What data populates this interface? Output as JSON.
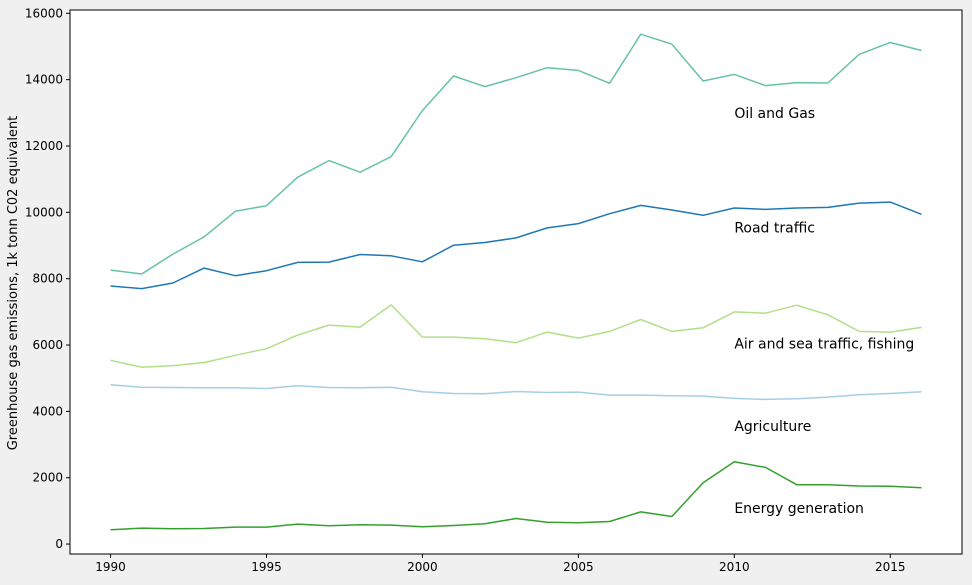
{
  "chart_data": {
    "type": "line",
    "title": "",
    "xlabel": "",
    "ylabel": "Greenhouse gas emissions, 1k tonn C02 equivalent",
    "xlim": [
      1988.7,
      2017.3
    ],
    "ylim": [
      -300,
      16100
    ],
    "xticks": [
      1990,
      1995,
      2000,
      2005,
      2010,
      2015
    ],
    "yticks": [
      0,
      2000,
      4000,
      6000,
      8000,
      10000,
      12000,
      14000,
      16000
    ],
    "grid": false,
    "x": [
      1990,
      1991,
      1992,
      1993,
      1994,
      1995,
      1996,
      1997,
      1998,
      1999,
      2000,
      2001,
      2002,
      2003,
      2004,
      2005,
      2006,
      2007,
      2008,
      2009,
      2010,
      2011,
      2012,
      2013,
      2014,
      2015,
      2016
    ],
    "series": [
      {
        "name": "Oil and Gas",
        "color": "#66c2a5",
        "label_at": [
          2010,
          13000
        ],
        "values": [
          8260,
          8140,
          8740,
          9260,
          10030,
          10200,
          11060,
          11560,
          11210,
          11680,
          13070,
          14110,
          13790,
          14060,
          14360,
          14280,
          13890,
          15370,
          15070,
          13960,
          14160,
          13820,
          13910,
          13900,
          14760,
          15120,
          14880
        ]
      },
      {
        "name": "Road traffic",
        "color": "#1f78b4",
        "label_at": [
          2010,
          9550
        ],
        "values": [
          7780,
          7700,
          7870,
          8320,
          8090,
          8240,
          8490,
          8500,
          8730,
          8690,
          8510,
          9010,
          9090,
          9230,
          9530,
          9660,
          9960,
          10210,
          10070,
          9910,
          10130,
          10090,
          10130,
          10150,
          10280,
          10310,
          9940
        ]
      },
      {
        "name": "Air and sea traffic, fishing",
        "color": "#b2df8a",
        "label_at": [
          2010,
          6050
        ],
        "values": [
          5540,
          5330,
          5380,
          5470,
          5690,
          5890,
          6300,
          6600,
          6540,
          7210,
          6240,
          6240,
          6190,
          6070,
          6390,
          6210,
          6410,
          6770,
          6410,
          6520,
          7000,
          6960,
          7200,
          6910,
          6410,
          6390,
          6530
        ]
      },
      {
        "name": "Agriculture",
        "color": "#a6cee3",
        "label_at": [
          2010,
          3560
        ],
        "values": [
          4800,
          4730,
          4720,
          4710,
          4710,
          4690,
          4770,
          4720,
          4710,
          4730,
          4590,
          4540,
          4530,
          4600,
          4570,
          4580,
          4490,
          4490,
          4470,
          4460,
          4390,
          4360,
          4380,
          4430,
          4500,
          4540,
          4590
        ]
      },
      {
        "name": "Energy generation",
        "color": "#33a02c",
        "label_at": [
          2010,
          1090
        ],
        "values": [
          430,
          480,
          460,
          470,
          510,
          510,
          600,
          550,
          580,
          570,
          520,
          560,
          610,
          770,
          660,
          640,
          680,
          970,
          830,
          1850,
          2480,
          2310,
          1790,
          1790,
          1750,
          1740,
          1700
        ]
      }
    ]
  }
}
